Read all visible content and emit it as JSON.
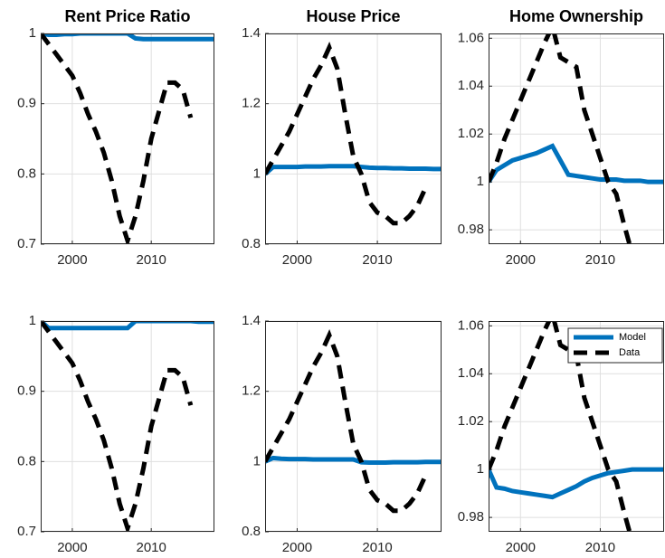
{
  "chart_data": [
    {
      "type": "line",
      "title": "Rent Price Ratio",
      "grid": true,
      "x": [
        1996,
        1997,
        1998,
        1999,
        2000,
        2001,
        2002,
        2003,
        2004,
        2005,
        2006,
        2007,
        2008,
        2009,
        2010,
        2011,
        2012,
        2013,
        2014,
        2015,
        2016,
        2017,
        2018
      ],
      "xlim": [
        1996,
        2018
      ],
      "xticks": [
        2000,
        2010
      ],
      "ylim": [
        0.7,
        1
      ],
      "yticks": [
        0.7,
        0.8,
        0.9,
        1
      ],
      "series": [
        {
          "name": "Model",
          "color": "#0072bd",
          "line_style": "solid",
          "values": [
            1,
            0.998,
            0.998,
            0.999,
            0.999,
            1,
            1,
            1,
            1,
            1,
            1,
            1,
            0.993,
            0.992,
            0.992,
            0.992,
            0.992,
            0.992,
            0.992,
            0.992,
            0.992,
            0.992,
            0.992
          ]
        },
        {
          "name": "Data",
          "color": "#000000",
          "line_style": "dashed",
          "values": [
            1,
            0.985,
            0.97,
            0.955,
            0.94,
            0.915,
            0.885,
            0.86,
            0.83,
            0.79,
            0.74,
            0.705,
            0.74,
            0.79,
            0.85,
            0.89,
            0.93,
            0.93,
            0.92,
            0.88,
            null,
            null,
            null
          ]
        }
      ]
    },
    {
      "type": "line",
      "title": "House Price",
      "grid": true,
      "x": [
        1996,
        1997,
        1998,
        1999,
        2000,
        2001,
        2002,
        2003,
        2004,
        2005,
        2006,
        2007,
        2008,
        2009,
        2010,
        2011,
        2012,
        2013,
        2014,
        2015,
        2016,
        2017,
        2018
      ],
      "xlim": [
        1996,
        2018
      ],
      "xticks": [
        2000,
        2010
      ],
      "ylim": [
        0.8,
        1.4
      ],
      "yticks": [
        0.8,
        1,
        1.2,
        1.4
      ],
      "series": [
        {
          "name": "Model",
          "color": "#0072bd",
          "line_style": "solid",
          "values": [
            1,
            1.02,
            1.02,
            1.02,
            1.02,
            1.021,
            1.021,
            1.021,
            1.022,
            1.022,
            1.022,
            1.022,
            1.02,
            1.018,
            1.017,
            1.017,
            1.016,
            1.016,
            1.015,
            1.015,
            1.015,
            1.014,
            1.014
          ]
        },
        {
          "name": "Data",
          "color": "#000000",
          "line_style": "dashed",
          "values": [
            1,
            1.04,
            1.08,
            1.12,
            1.17,
            1.22,
            1.27,
            1.31,
            1.36,
            1.3,
            1.17,
            1.05,
            1,
            0.92,
            0.89,
            0.88,
            0.86,
            0.86,
            0.88,
            0.91,
            0.96,
            null,
            null
          ]
        }
      ]
    },
    {
      "type": "line",
      "title": "Home Ownership",
      "grid": true,
      "x": [
        1996,
        1997,
        1998,
        1999,
        2000,
        2001,
        2002,
        2003,
        2004,
        2005,
        2006,
        2007,
        2008,
        2009,
        2010,
        2011,
        2012,
        2013,
        2014,
        2015,
        2016,
        2017,
        2018
      ],
      "xlim": [
        1996,
        2018
      ],
      "xticks": [
        2000,
        2010
      ],
      "ylim": [
        0.974,
        1.062
      ],
      "yticks": [
        0.98,
        1,
        1.02,
        1.04,
        1.06
      ],
      "series": [
        {
          "name": "Model",
          "color": "#0072bd",
          "line_style": "solid",
          "values": [
            1,
            1.005,
            1.007,
            1.009,
            1.01,
            1.011,
            1.012,
            1.0135,
            1.015,
            1.009,
            1.003,
            1.0025,
            1.002,
            1.0015,
            1.001,
            1.001,
            1.001,
            1.0005,
            1.0005,
            1.0005,
            1,
            1,
            1
          ]
        },
        {
          "name": "Data",
          "color": "#000000",
          "line_style": "dashed",
          "values": [
            1,
            1.008,
            1.018,
            1.026,
            1.034,
            1.042,
            1.05,
            1.058,
            1.065,
            1.052,
            1.05,
            1.048,
            1.03,
            1.02,
            1.01,
            1,
            0.995,
            0.982,
            0.97,
            0.96,
            null,
            null,
            null
          ]
        }
      ]
    },
    {
      "type": "line",
      "grid": true,
      "x": [
        1996,
        1997,
        1998,
        1999,
        2000,
        2001,
        2002,
        2003,
        2004,
        2005,
        2006,
        2007,
        2008,
        2009,
        2010,
        2011,
        2012,
        2013,
        2014,
        2015,
        2016,
        2017,
        2018
      ],
      "xlim": [
        1996,
        2018
      ],
      "xticks": [
        2000,
        2010
      ],
      "ylim": [
        0.7,
        1
      ],
      "yticks": [
        0.7,
        0.8,
        0.9,
        1
      ],
      "series": [
        {
          "name": "Model",
          "color": "#0072bd",
          "line_style": "solid",
          "values": [
            1,
            0.99,
            0.99,
            0.99,
            0.99,
            0.99,
            0.99,
            0.99,
            0.99,
            0.99,
            0.99,
            0.99,
            1,
            1,
            1,
            1,
            1,
            1,
            1,
            1,
            0.999,
            0.999,
            0.999
          ]
        },
        {
          "name": "Data",
          "color": "#000000",
          "line_style": "dashed",
          "values": [
            1,
            0.985,
            0.97,
            0.955,
            0.94,
            0.915,
            0.885,
            0.86,
            0.83,
            0.79,
            0.74,
            0.705,
            0.74,
            0.79,
            0.85,
            0.89,
            0.93,
            0.93,
            0.92,
            0.88,
            null,
            null,
            null
          ]
        }
      ]
    },
    {
      "type": "line",
      "grid": true,
      "x": [
        1996,
        1997,
        1998,
        1999,
        2000,
        2001,
        2002,
        2003,
        2004,
        2005,
        2006,
        2007,
        2008,
        2009,
        2010,
        2011,
        2012,
        2013,
        2014,
        2015,
        2016,
        2017,
        2018
      ],
      "xlim": [
        1996,
        2018
      ],
      "xticks": [
        2000,
        2010
      ],
      "ylim": [
        0.8,
        1.4
      ],
      "yticks": [
        0.8,
        1,
        1.2,
        1.4
      ],
      "series": [
        {
          "name": "Model",
          "color": "#0072bd",
          "line_style": "solid",
          "values": [
            1,
            1.01,
            1.008,
            1.007,
            1.007,
            1.007,
            1.006,
            1.006,
            1.006,
            1.006,
            1.006,
            1.006,
            0.998,
            0.997,
            0.997,
            0.997,
            0.998,
            0.998,
            0.998,
            0.998,
            0.999,
            0.999,
            0.999
          ]
        },
        {
          "name": "Data",
          "color": "#000000",
          "line_style": "dashed",
          "values": [
            1,
            1.04,
            1.08,
            1.12,
            1.17,
            1.22,
            1.27,
            1.31,
            1.36,
            1.3,
            1.17,
            1.05,
            1,
            0.92,
            0.89,
            0.88,
            0.86,
            0.86,
            0.88,
            0.91,
            0.96,
            null,
            null
          ]
        }
      ]
    },
    {
      "type": "line",
      "grid": true,
      "legend": "northeast",
      "x": [
        1996,
        1997,
        1998,
        1999,
        2000,
        2001,
        2002,
        2003,
        2004,
        2005,
        2006,
        2007,
        2008,
        2009,
        2010,
        2011,
        2012,
        2013,
        2014,
        2015,
        2016,
        2017,
        2018
      ],
      "xlim": [
        1996,
        2018
      ],
      "xticks": [
        2000,
        2010
      ],
      "ylim": [
        0.974,
        1.062
      ],
      "yticks": [
        0.98,
        1,
        1.02,
        1.04,
        1.06
      ],
      "series": [
        {
          "name": "Model",
          "color": "#0072bd",
          "line_style": "solid",
          "values": [
            1,
            0.9925,
            0.992,
            0.991,
            0.9905,
            0.99,
            0.9895,
            0.989,
            0.9885,
            0.99,
            0.9915,
            0.993,
            0.995,
            0.9965,
            0.9975,
            0.9985,
            0.999,
            0.9995,
            1,
            1,
            1,
            1,
            1
          ]
        },
        {
          "name": "Data",
          "color": "#000000",
          "line_style": "dashed",
          "values": [
            1,
            1.008,
            1.018,
            1.026,
            1.034,
            1.042,
            1.05,
            1.058,
            1.065,
            1.052,
            1.05,
            1.048,
            1.03,
            1.02,
            1.01,
            1,
            0.995,
            0.982,
            0.97,
            0.96,
            null,
            null,
            null
          ]
        }
      ]
    }
  ]
}
